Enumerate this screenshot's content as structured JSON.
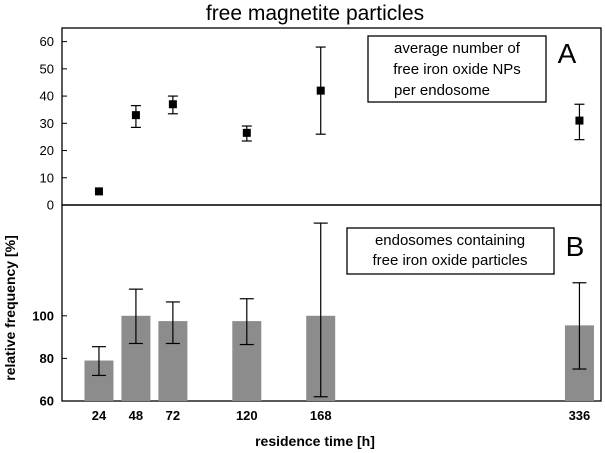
{
  "chart_data": [
    {
      "type": "scatter",
      "title": "free magnetite particles",
      "panel_label": "A",
      "legend_lines": [
        "average number of",
        "free iron oxide NPs",
        "per endosome"
      ],
      "x": [
        24,
        48,
        72,
        120,
        168,
        336
      ],
      "values": [
        5,
        33,
        37,
        26.5,
        42,
        31
      ],
      "err_low": [
        0,
        4.5,
        3.5,
        3,
        16,
        7
      ],
      "err_high": [
        0,
        3.5,
        3,
        2.5,
        16,
        6
      ],
      "ylim": [
        0,
        65
      ],
      "yticks": [
        0,
        10,
        20,
        30,
        40,
        50,
        60
      ],
      "xlim": [
        0,
        350
      ]
    },
    {
      "type": "bar",
      "panel_label": "B",
      "legend_lines": [
        "endosomes containing",
        "free iron oxide particles"
      ],
      "x": [
        24,
        48,
        72,
        120,
        168,
        336
      ],
      "values": [
        79,
        100,
        97.5,
        97.5,
        100,
        95.5
      ],
      "err_low": [
        7,
        13,
        10.5,
        11,
        38,
        20.5
      ],
      "err_high": [
        6.5,
        12.5,
        9,
        10.5,
        43.5,
        20
      ],
      "ylim": [
        60,
        152
      ],
      "yticks": [
        60,
        80,
        100
      ],
      "ylabel": "relative frequency [%]",
      "xlabel": "residence time [h]",
      "xtick_labels": [
        "24",
        "48",
        "72",
        "120",
        "168",
        "336"
      ],
      "xlim": [
        0,
        350
      ]
    }
  ]
}
